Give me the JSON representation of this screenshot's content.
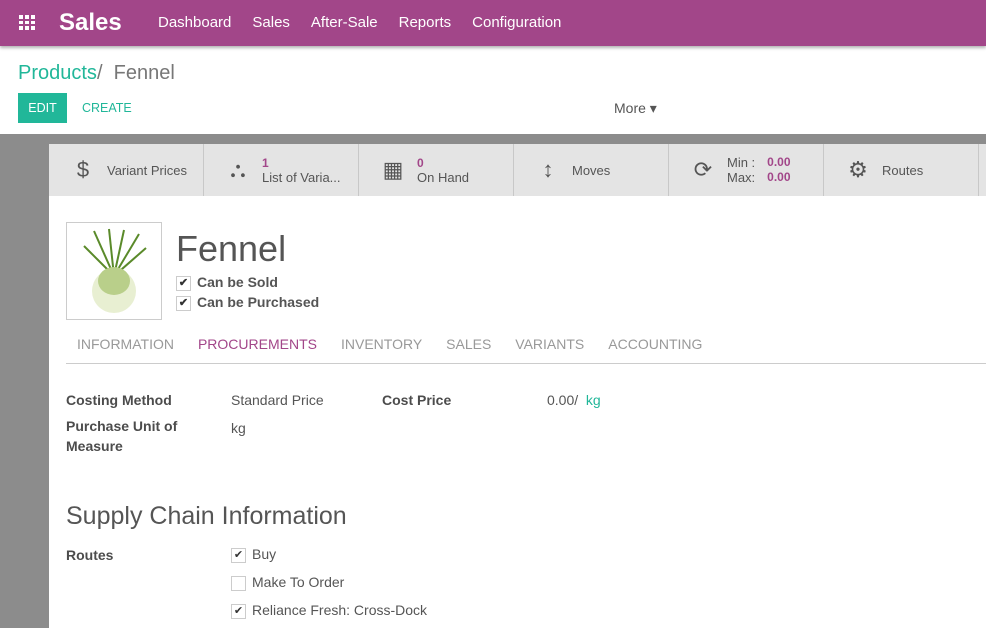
{
  "nav": {
    "app": "Sales",
    "menu": [
      "Dashboard",
      "Sales",
      "After-Sale",
      "Reports",
      "Configuration"
    ]
  },
  "breadcrumb": {
    "parent": "Products",
    "sep": "/",
    "current": "Fennel"
  },
  "toolbar": {
    "edit": "EDIT",
    "create": "CREATE",
    "more": "More ▾"
  },
  "smart_buttons": [
    {
      "icon": "dollar-icon",
      "label": "Variant Prices"
    },
    {
      "icon": "sitemap-icon",
      "value": "1",
      "label": "List of Varia..."
    },
    {
      "icon": "building-icon",
      "value": "0",
      "label": "On Hand"
    },
    {
      "icon": "arrows-vertical-icon",
      "label": "Moves"
    },
    {
      "icon": "refresh-icon",
      "min_label": "Min :",
      "min": "0.00",
      "max_label": "Max:",
      "max": "0.00"
    },
    {
      "icon": "cogs-icon",
      "label": "Routes"
    }
  ],
  "product": {
    "name": "Fennel",
    "can_be_sold": "Can be Sold",
    "can_be_purchased": "Can be Purchased"
  },
  "tabs": [
    "INFORMATION",
    "PROCUREMENTS",
    "INVENTORY",
    "SALES",
    "VARIANTS",
    "ACCOUNTING"
  ],
  "fields": {
    "costing_method_label": "Costing Method",
    "costing_method": "Standard Price",
    "cost_price_label": "Cost Price",
    "cost_price": "0.00/",
    "cost_unit": "kg",
    "purchase_uom_label": "Purchase Unit of Measure",
    "purchase_uom": "kg"
  },
  "supply": {
    "title": "Supply Chain Information",
    "routes_label": "Routes",
    "routes": [
      {
        "label": "Buy",
        "checked": true
      },
      {
        "label": "Make To Order",
        "checked": false
      },
      {
        "label": "Reliance Fresh: Cross-Dock",
        "checked": true
      }
    ]
  },
  "colors": {
    "brand": "#a24689",
    "accent": "#21b799"
  }
}
